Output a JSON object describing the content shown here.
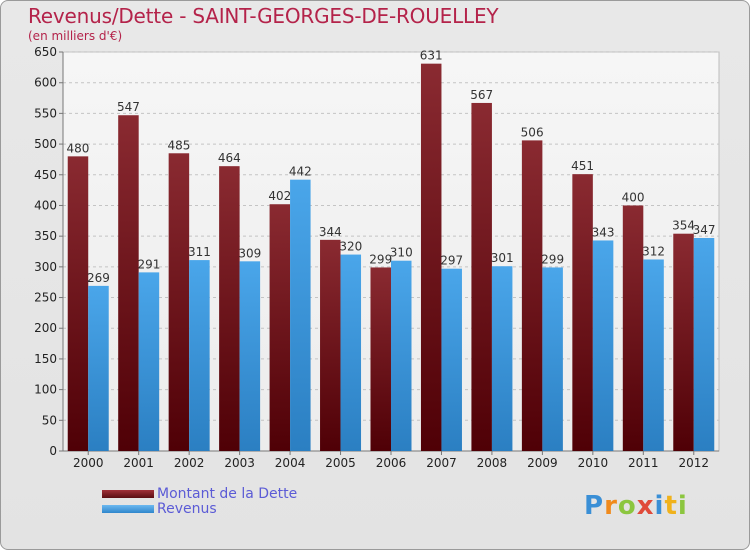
{
  "chart_data": {
    "type": "bar",
    "title": "Revenus/Dette - SAINT-GEORGES-DE-ROUELLEY",
    "subtitle": "(en milliers d'€)",
    "categories": [
      "2000",
      "2001",
      "2002",
      "2003",
      "2004",
      "2005",
      "2006",
      "2007",
      "2008",
      "2009",
      "2010",
      "2011",
      "2012"
    ],
    "series": [
      {
        "name": "Montant de la Dette",
        "color": "#7a1f25",
        "values": [
          480,
          547,
          485,
          464,
          402,
          344,
          299,
          631,
          567,
          506,
          451,
          400,
          354
        ]
      },
      {
        "name": "Revenus",
        "color": "#3f9be0",
        "values": [
          269,
          291,
          311,
          309,
          442,
          320,
          310,
          297,
          301,
          299,
          343,
          312,
          347
        ]
      }
    ],
    "ylim": [
      0,
      650
    ],
    "yticks": [
      0,
      50,
      100,
      150,
      200,
      250,
      300,
      350,
      400,
      450,
      500,
      550,
      600,
      650
    ],
    "grid": true,
    "legend_position": "bottom-left"
  },
  "logo": {
    "text": "Proxiti",
    "letters": [
      {
        "ch": "P",
        "color": "#3a8fd6"
      },
      {
        "ch": "r",
        "color": "#f08a1c"
      },
      {
        "ch": "o",
        "color": "#8cc63f"
      },
      {
        "ch": "x",
        "color": "#e04a3a"
      },
      {
        "ch": "i",
        "color": "#3a8fd6"
      },
      {
        "ch": "t",
        "color": "#f0b21c"
      },
      {
        "ch": "i",
        "color": "#8cc63f"
      }
    ]
  }
}
